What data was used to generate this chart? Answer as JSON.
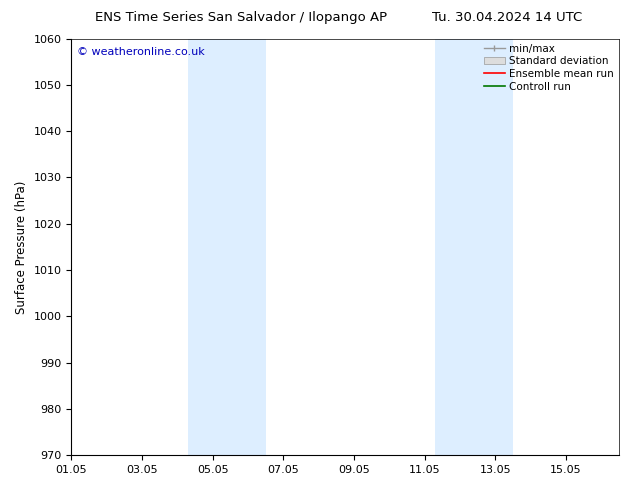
{
  "title_left": "ENS Time Series San Salvador / Ilopango AP",
  "title_right": "Tu. 30.04.2024 14 UTC",
  "ylabel": "Surface Pressure (hPa)",
  "ylim": [
    970,
    1060
  ],
  "yticks": [
    970,
    980,
    990,
    1000,
    1010,
    1020,
    1030,
    1040,
    1050,
    1060
  ],
  "xlim_start": 0.0,
  "xlim_end": 15.5,
  "xtick_positions": [
    0,
    2,
    4,
    6,
    8,
    10,
    12,
    14
  ],
  "xtick_labels": [
    "01.05",
    "03.05",
    "05.05",
    "07.05",
    "09.05",
    "11.05",
    "13.05",
    "15.05"
  ],
  "shaded_bands": [
    {
      "x_start": 3.3,
      "x_end": 5.5
    },
    {
      "x_start": 10.3,
      "x_end": 12.5
    }
  ],
  "shade_color": "#ddeeff",
  "watermark": "© weatheronline.co.uk",
  "watermark_color": "#0000bb",
  "legend_labels": [
    "min/max",
    "Standard deviation",
    "Ensemble mean run",
    "Controll run"
  ],
  "legend_line_color": "#999999",
  "legend_box_color": "#dddddd",
  "legend_red": "#ff0000",
  "legend_green": "#007700",
  "bg_color": "#ffffff",
  "title_fontsize": 9.5,
  "ylabel_fontsize": 8.5,
  "tick_fontsize": 8,
  "watermark_fontsize": 8,
  "legend_fontsize": 7.5
}
